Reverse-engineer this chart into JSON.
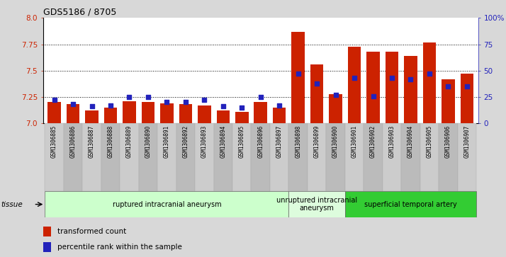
{
  "title": "GDS5186 / 8705",
  "samples": [
    "GSM1306885",
    "GSM1306886",
    "GSM1306887",
    "GSM1306888",
    "GSM1306889",
    "GSM1306890",
    "GSM1306891",
    "GSM1306892",
    "GSM1306893",
    "GSM1306894",
    "GSM1306895",
    "GSM1306896",
    "GSM1306897",
    "GSM1306898",
    "GSM1306899",
    "GSM1306900",
    "GSM1306901",
    "GSM1306902",
    "GSM1306903",
    "GSM1306904",
    "GSM1306905",
    "GSM1306906",
    "GSM1306907"
  ],
  "red_values": [
    7.2,
    7.18,
    7.12,
    7.15,
    7.21,
    7.2,
    7.19,
    7.18,
    7.17,
    7.12,
    7.11,
    7.2,
    7.15,
    7.87,
    7.56,
    7.28,
    7.73,
    7.68,
    7.68,
    7.64,
    7.77,
    7.42,
    7.47
  ],
  "blue_values": [
    22,
    18,
    16,
    17,
    25,
    25,
    20,
    20,
    22,
    16,
    15,
    25,
    17,
    47,
    38,
    27,
    43,
    26,
    43,
    42,
    47,
    35,
    35
  ],
  "ylim": [
    7.0,
    8.0
  ],
  "yticks": [
    7.0,
    7.25,
    7.5,
    7.75,
    8.0
  ],
  "right_ylim": [
    0,
    100
  ],
  "right_yticks": [
    0,
    25,
    50,
    75,
    100
  ],
  "groups": [
    {
      "label": "ruptured intracranial aneurysm",
      "start": 0,
      "end": 13,
      "color": "#ccffcc"
    },
    {
      "label": "unruptured intracranial\naneurysm",
      "start": 13,
      "end": 16,
      "color": "#ddfcdd"
    },
    {
      "label": "superficial temporal artery",
      "start": 16,
      "end": 23,
      "color": "#33cc33"
    }
  ],
  "bar_color": "#cc2200",
  "dot_color": "#2222bb",
  "grid_color": "#000000",
  "bg_color": "#d8d8d8",
  "plot_bg": "#ffffff",
  "xtick_bg": "#cccccc",
  "tissue_label": "tissue",
  "legend_red": "transformed count",
  "legend_blue": "percentile rank within the sample",
  "title_color": "#000000",
  "left_label_color": "#cc2200",
  "right_label_color": "#2222bb"
}
